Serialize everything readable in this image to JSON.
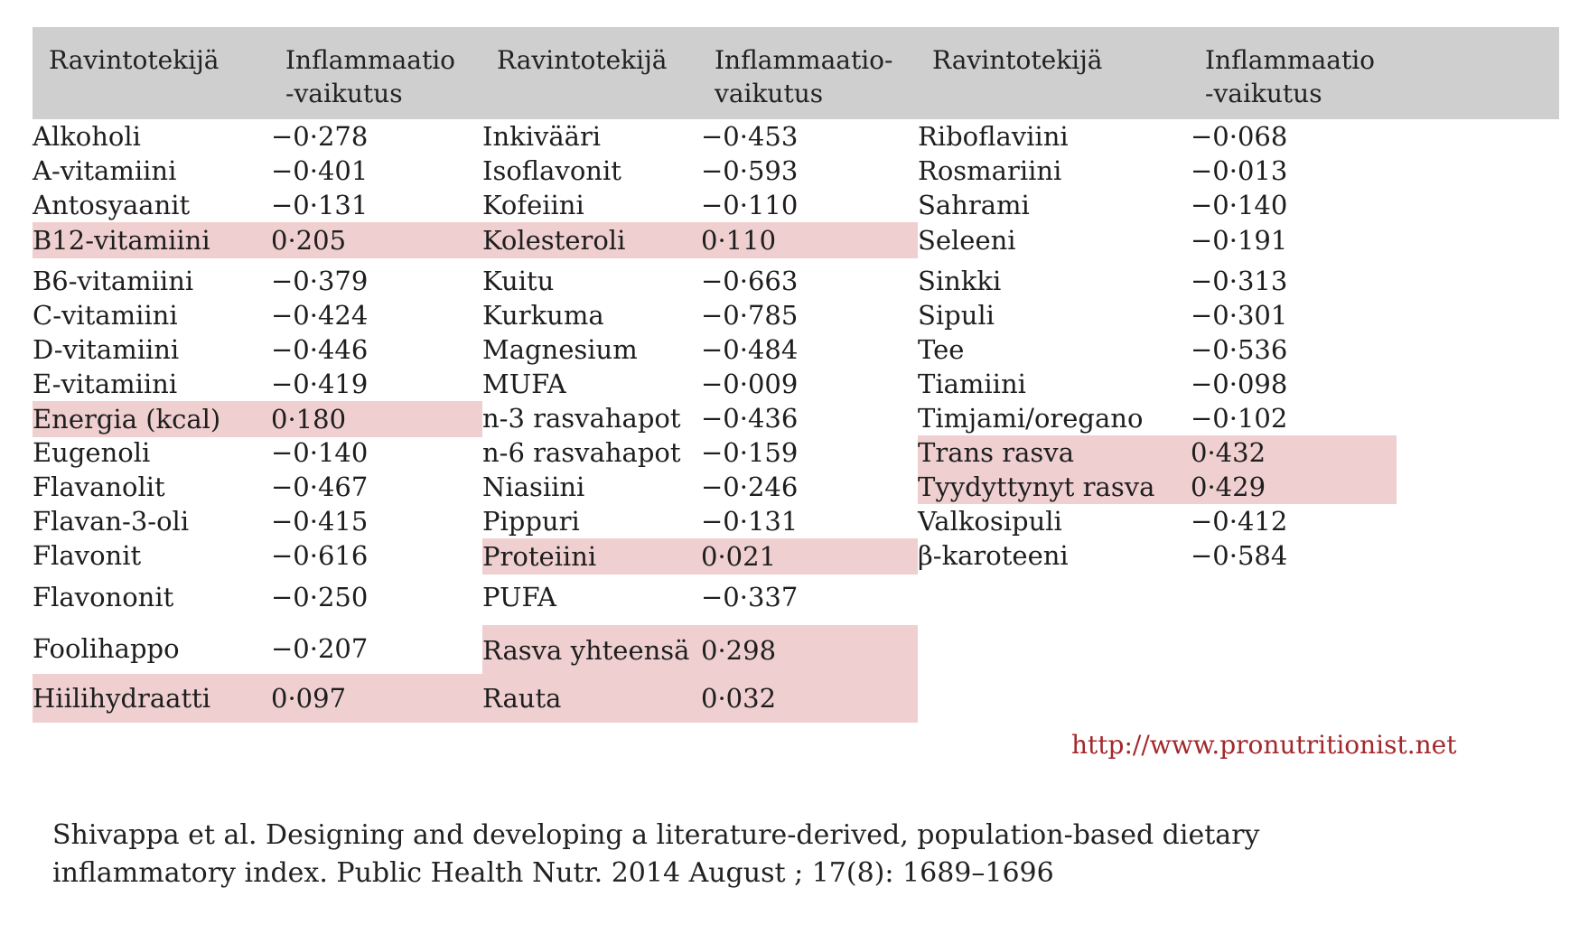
{
  "headers": [
    {
      "name": "Ravintotekijä",
      "effect_line1": "Inflammaatio",
      "effect_line2": "-vaikutus"
    },
    {
      "name": "Ravintotekijä",
      "effect_line1": "Inflammaatio-",
      "effect_line2": "vaikutus"
    },
    {
      "name": "Ravintotekijä",
      "effect_line1": "Inflammaatio",
      "effect_line2": "-vaikutus"
    }
  ],
  "columns": [
    [
      {
        "name": "Alkoholi",
        "value": "−0·278",
        "positive": false
      },
      {
        "name": "A-vitamiini",
        "value": "−0·401",
        "positive": false
      },
      {
        "name": "Antosyaanit",
        "value": "−0·131",
        "positive": false
      },
      {
        "name": "B12-vitamiini",
        "value": "0·205",
        "positive": true
      },
      {
        "name": "B6-vitamiini",
        "value": "−0·379",
        "positive": false
      },
      {
        "name": "C-vitamiini",
        "value": "−0·424",
        "positive": false
      },
      {
        "name": "D-vitamiini",
        "value": "−0·446",
        "positive": false
      },
      {
        "name": "E-vitamiini",
        "value": "−0·419",
        "positive": false
      },
      {
        "name": "Energia (kcal)",
        "value": "0·180",
        "positive": true
      },
      {
        "name": "Eugenoli",
        "value": "−0·140",
        "positive": false
      },
      {
        "name": "Flavanolit",
        "value": "−0·467",
        "positive": false
      },
      {
        "name": "Flavan-3-oli",
        "value": "−0·415",
        "positive": false
      },
      {
        "name": "Flavonit",
        "value": "−0·616",
        "positive": false
      },
      {
        "name": "Flavononit",
        "value": "−0·250",
        "positive": false
      },
      {
        "name": "Foolihappo",
        "value": "−0·207",
        "positive": false
      },
      {
        "name": "Hiilihydraatti",
        "value": "0·097",
        "positive": true
      }
    ],
    [
      {
        "name": "Inkivääri",
        "value": "−0·453",
        "positive": false
      },
      {
        "name": "Isoflavonit",
        "value": "−0·593",
        "positive": false
      },
      {
        "name": "Kofeiini",
        "value": "−0·110",
        "positive": false
      },
      {
        "name": "Kolesteroli",
        "value": "0·110",
        "positive": true
      },
      {
        "name": "Kuitu",
        "value": "−0·663",
        "positive": false
      },
      {
        "name": "Kurkuma",
        "value": "−0·785",
        "positive": false
      },
      {
        "name": "Magnesium",
        "value": "−0·484",
        "positive": false
      },
      {
        "name": "MUFA",
        "value": "−0·009",
        "positive": false
      },
      {
        "name": "n-3 rasvahapot",
        "value": "−0·436",
        "positive": false
      },
      {
        "name": "n-6 rasvahapot",
        "value": "−0·159",
        "positive": false
      },
      {
        "name": "Niasiini",
        "value": "−0·246",
        "positive": false
      },
      {
        "name": "Pippuri",
        "value": "−0·131",
        "positive": false
      },
      {
        "name": "Proteiini",
        "value": "0·021",
        "positive": true
      },
      {
        "name": "PUFA",
        "value": "−0·337",
        "positive": false
      },
      {
        "name": "Rasva yhteensä",
        "value": "0·298",
        "positive": true
      },
      {
        "name": "Rauta",
        "value": "0·032",
        "positive": true
      }
    ],
    [
      {
        "name": "Riboflaviini",
        "value": "−0·068",
        "positive": false
      },
      {
        "name": "Rosmariini",
        "value": "−0·013",
        "positive": false
      },
      {
        "name": "Sahrami",
        "value": "−0·140",
        "positive": false
      },
      {
        "name": "Seleeni",
        "value": "−0·191",
        "positive": false
      },
      {
        "name": "Sinkki",
        "value": "−0·313",
        "positive": false
      },
      {
        "name": "Sipuli",
        "value": "−0·301",
        "positive": false
      },
      {
        "name": "Tee",
        "value": "−0·536",
        "positive": false
      },
      {
        "name": "Tiamiini",
        "value": "−0·098",
        "positive": false
      },
      {
        "name": "Timjami/oregano",
        "value": "−0·102",
        "positive": false
      },
      {
        "name": "Trans rasva",
        "value": "0·432",
        "positive": true
      },
      {
        "name": "Tyydyttynyt rasva",
        "value": "0·429",
        "positive": true
      },
      {
        "name": "Valkosipuli",
        "value": "−0·412",
        "positive": false
      },
      {
        "name": "β-karoteeni",
        "value": "−0·584",
        "positive": false
      }
    ]
  ],
  "colors": {
    "header_background": "#cfcfcf",
    "positive_highlight": "#efcfcf",
    "link": "#a3282b",
    "text": "#1e1e1e"
  },
  "source_link": "http://www.pronutritionist.net",
  "citation": {
    "line1": "Shivappa et al. Designing and developing a literature-derived, population-based dietary",
    "line2": "inflammatory index.  Public Health Nutr. 2014 August ; 17(8): 1689–1696"
  }
}
